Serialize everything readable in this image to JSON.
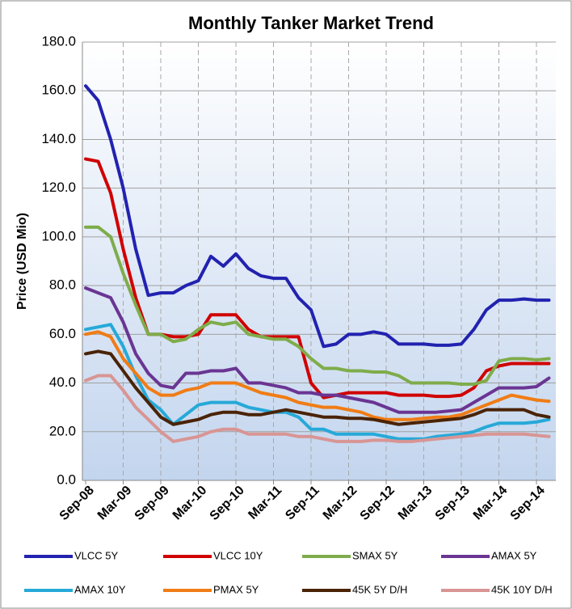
{
  "chart_data": {
    "type": "line",
    "title": "Monthly Tanker Market Trend",
    "ylabel": "Price (USD Mio)",
    "categories": [
      "Sep-08",
      null,
      null,
      "Mar-09",
      null,
      null,
      "Sep-09",
      null,
      null,
      "Mar-10",
      null,
      null,
      "Sep-10",
      null,
      null,
      "Mar-11",
      null,
      null,
      "Sep-11",
      null,
      null,
      "Mar-12",
      null,
      null,
      "Sep-12",
      null,
      null,
      "Mar-13",
      null,
      null,
      "Sep-13",
      null,
      null,
      "Mar-14",
      null,
      null,
      "Sep-14",
      null
    ],
    "series": [
      {
        "name": "VLCC 5Y",
        "color": "#2222b0",
        "values": [
          162,
          156,
          140,
          120,
          95,
          76,
          77,
          77,
          80,
          82,
          92,
          88,
          93,
          87,
          84,
          83,
          83,
          75,
          70,
          55,
          56,
          60,
          60,
          61,
          60,
          56,
          56,
          56,
          55.5,
          55.5,
          56,
          62,
          70,
          74,
          74,
          74.5,
          74,
          74
        ]
      },
      {
        "name": "VLCC 10Y",
        "color": "#d00000",
        "values": [
          132,
          131,
          118,
          95,
          75,
          60,
          60,
          59,
          59,
          60,
          68,
          68,
          68,
          62,
          59,
          59,
          59,
          59,
          40,
          34,
          35,
          36,
          36,
          36,
          36,
          35,
          35,
          35,
          34.5,
          34.5,
          35,
          38,
          45,
          47,
          48,
          48,
          48,
          48
        ]
      },
      {
        "name": "SMAX 5Y",
        "color": "#7fac4b",
        "values": [
          104,
          104,
          100,
          85,
          72,
          60,
          60,
          57,
          58,
          62,
          65,
          64,
          65,
          60,
          59,
          58,
          58,
          55,
          50,
          46,
          46,
          45,
          45,
          44.5,
          44.5,
          43,
          40,
          40,
          40,
          40,
          39.5,
          39.5,
          41,
          49,
          50,
          50,
          49.5,
          50
        ]
      },
      {
        "name": "AMAX 5Y",
        "color": "#6a3593",
        "values": [
          79,
          77,
          75,
          65,
          52,
          44,
          39,
          38,
          44,
          44,
          45,
          45,
          46,
          40,
          40,
          39,
          38,
          36,
          36,
          35,
          35,
          34,
          33,
          32,
          30,
          28,
          28,
          28,
          28,
          28.5,
          29,
          32,
          35,
          38,
          38,
          38,
          38.5,
          42
        ]
      },
      {
        "name": "AMAX 10Y",
        "color": "#26a9d8",
        "values": [
          62,
          63,
          64,
          55,
          43,
          33,
          29,
          23,
          27,
          31,
          32,
          32,
          32,
          30,
          29,
          28,
          28,
          26,
          21,
          21,
          19,
          19,
          19,
          19,
          18,
          17,
          17,
          17,
          18,
          18.5,
          19,
          20,
          22,
          23.5,
          23.5,
          23.5,
          24,
          25
        ]
      },
      {
        "name": "PMAX 5Y",
        "color": "#f07c16",
        "values": [
          60,
          61,
          59,
          50,
          44,
          38,
          35,
          35,
          37,
          38,
          40,
          40,
          40,
          38,
          36,
          35,
          34,
          32,
          31,
          30,
          30,
          29,
          28,
          26,
          25,
          25,
          25,
          25.5,
          26,
          26,
          27,
          29,
          31,
          33,
          35,
          34,
          33,
          32.5
        ]
      },
      {
        "name": "45K 5Y D/H",
        "color": "#4a2306",
        "values": [
          52,
          53,
          52,
          45,
          38,
          32,
          26,
          23,
          24,
          25,
          27,
          28,
          28,
          27,
          27,
          28,
          29,
          28,
          27,
          26,
          26,
          25.5,
          25.5,
          25,
          24,
          23,
          23.5,
          24,
          24.5,
          25,
          25.5,
          27,
          29,
          29,
          29,
          29,
          27,
          26
        ]
      },
      {
        "name": "45K 10Y D/H",
        "color": "#d89594",
        "values": [
          41,
          43,
          43,
          37,
          30,
          25,
          20,
          16,
          17,
          18,
          20,
          21,
          21,
          19,
          19,
          19,
          19,
          18,
          18,
          17,
          16,
          16,
          16,
          16.5,
          16.5,
          16,
          16,
          16.5,
          17,
          17.5,
          18,
          18.5,
          19,
          19,
          19,
          19,
          18.5,
          18
        ]
      }
    ],
    "ylim": [
      0,
      180
    ],
    "yticks": [
      {
        "value": 0,
        "label": "0.0"
      },
      {
        "value": 20,
        "label": "20.0"
      },
      {
        "value": 40,
        "label": "40.0"
      },
      {
        "value": 60,
        "label": "60.0"
      },
      {
        "value": 80,
        "label": "80.0"
      },
      {
        "value": 100,
        "label": "100.0"
      },
      {
        "value": 120,
        "label": "120.0"
      },
      {
        "value": 140,
        "label": "140.0"
      },
      {
        "value": 160,
        "label": "160.0"
      },
      {
        "value": 180,
        "label": "180.0"
      }
    ],
    "grid": true
  }
}
